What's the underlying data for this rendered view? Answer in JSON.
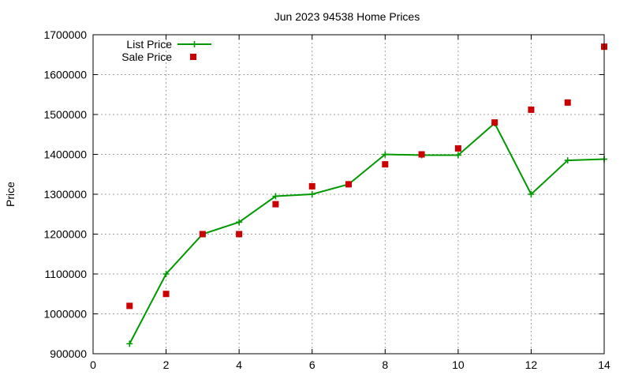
{
  "chart_data": {
    "type": "line",
    "title": "Jun 2023 94538 Home Prices",
    "xlabel": "",
    "ylabel": "Price",
    "xlim": [
      0,
      14
    ],
    "ylim": [
      900000,
      1700000
    ],
    "xticks": [
      0,
      2,
      4,
      6,
      8,
      10,
      12,
      14
    ],
    "yticks": [
      900000,
      1000000,
      1100000,
      1200000,
      1300000,
      1400000,
      1500000,
      1600000,
      1700000
    ],
    "grid": true,
    "legend_position": "top-left",
    "series": [
      {
        "name": "List Price",
        "style": "line+cross",
        "color": "#009900",
        "x": [
          1,
          2,
          3,
          4,
          5,
          6,
          7,
          8,
          9,
          10,
          11,
          12,
          13,
          14
        ],
        "values": [
          925000,
          1100000,
          1200000,
          1230000,
          1295000,
          1300000,
          1325000,
          1400000,
          1398000,
          1398000,
          1478000,
          1300000,
          1385000,
          1388000
        ]
      },
      {
        "name": "Sale Price",
        "style": "square",
        "color": "#cc0000",
        "x": [
          1,
          2,
          3,
          4,
          5,
          6,
          7,
          8,
          9,
          10,
          11,
          12,
          13,
          14
        ],
        "values": [
          1020000,
          1050000,
          1200000,
          1200000,
          1275000,
          1320000,
          1325000,
          1375000,
          1400000,
          1415000,
          1480000,
          1512000,
          1530000,
          1670000
        ]
      }
    ]
  }
}
